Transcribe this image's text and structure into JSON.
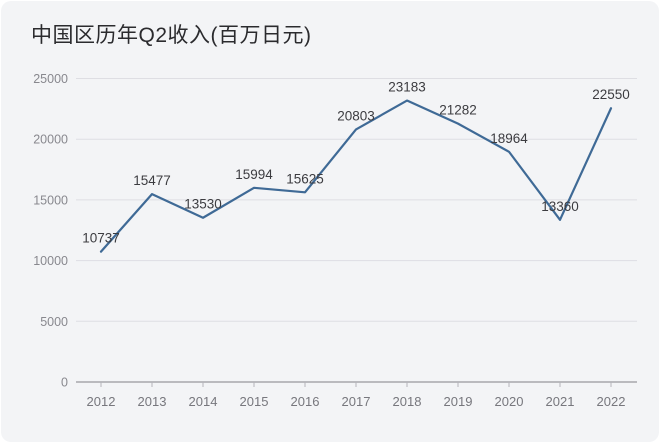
{
  "chart_data": {
    "type": "line",
    "title": "中国区历年Q2收入(百万日元)",
    "categories": [
      "2012",
      "2013",
      "2014",
      "2015",
      "2016",
      "2017",
      "2018",
      "2019",
      "2020",
      "2021",
      "2022"
    ],
    "values": [
      10737,
      15477,
      13530,
      15994,
      15625,
      20803,
      23183,
      21282,
      18964,
      13360,
      22550
    ],
    "yticks": [
      0,
      5000,
      10000,
      15000,
      20000,
      25000
    ],
    "ylim": [
      0,
      25000
    ],
    "xlabel": "",
    "ylabel": "",
    "grid": "horizontal",
    "legend": "none",
    "data_labels": "above-points",
    "colors": {
      "line": "#3f6a96",
      "background": "#f3f4f6",
      "gridline": "#dedee3",
      "title_text": "#2b2b2e",
      "label_text": "#3c3c40",
      "tick_text": "#88888e"
    }
  }
}
